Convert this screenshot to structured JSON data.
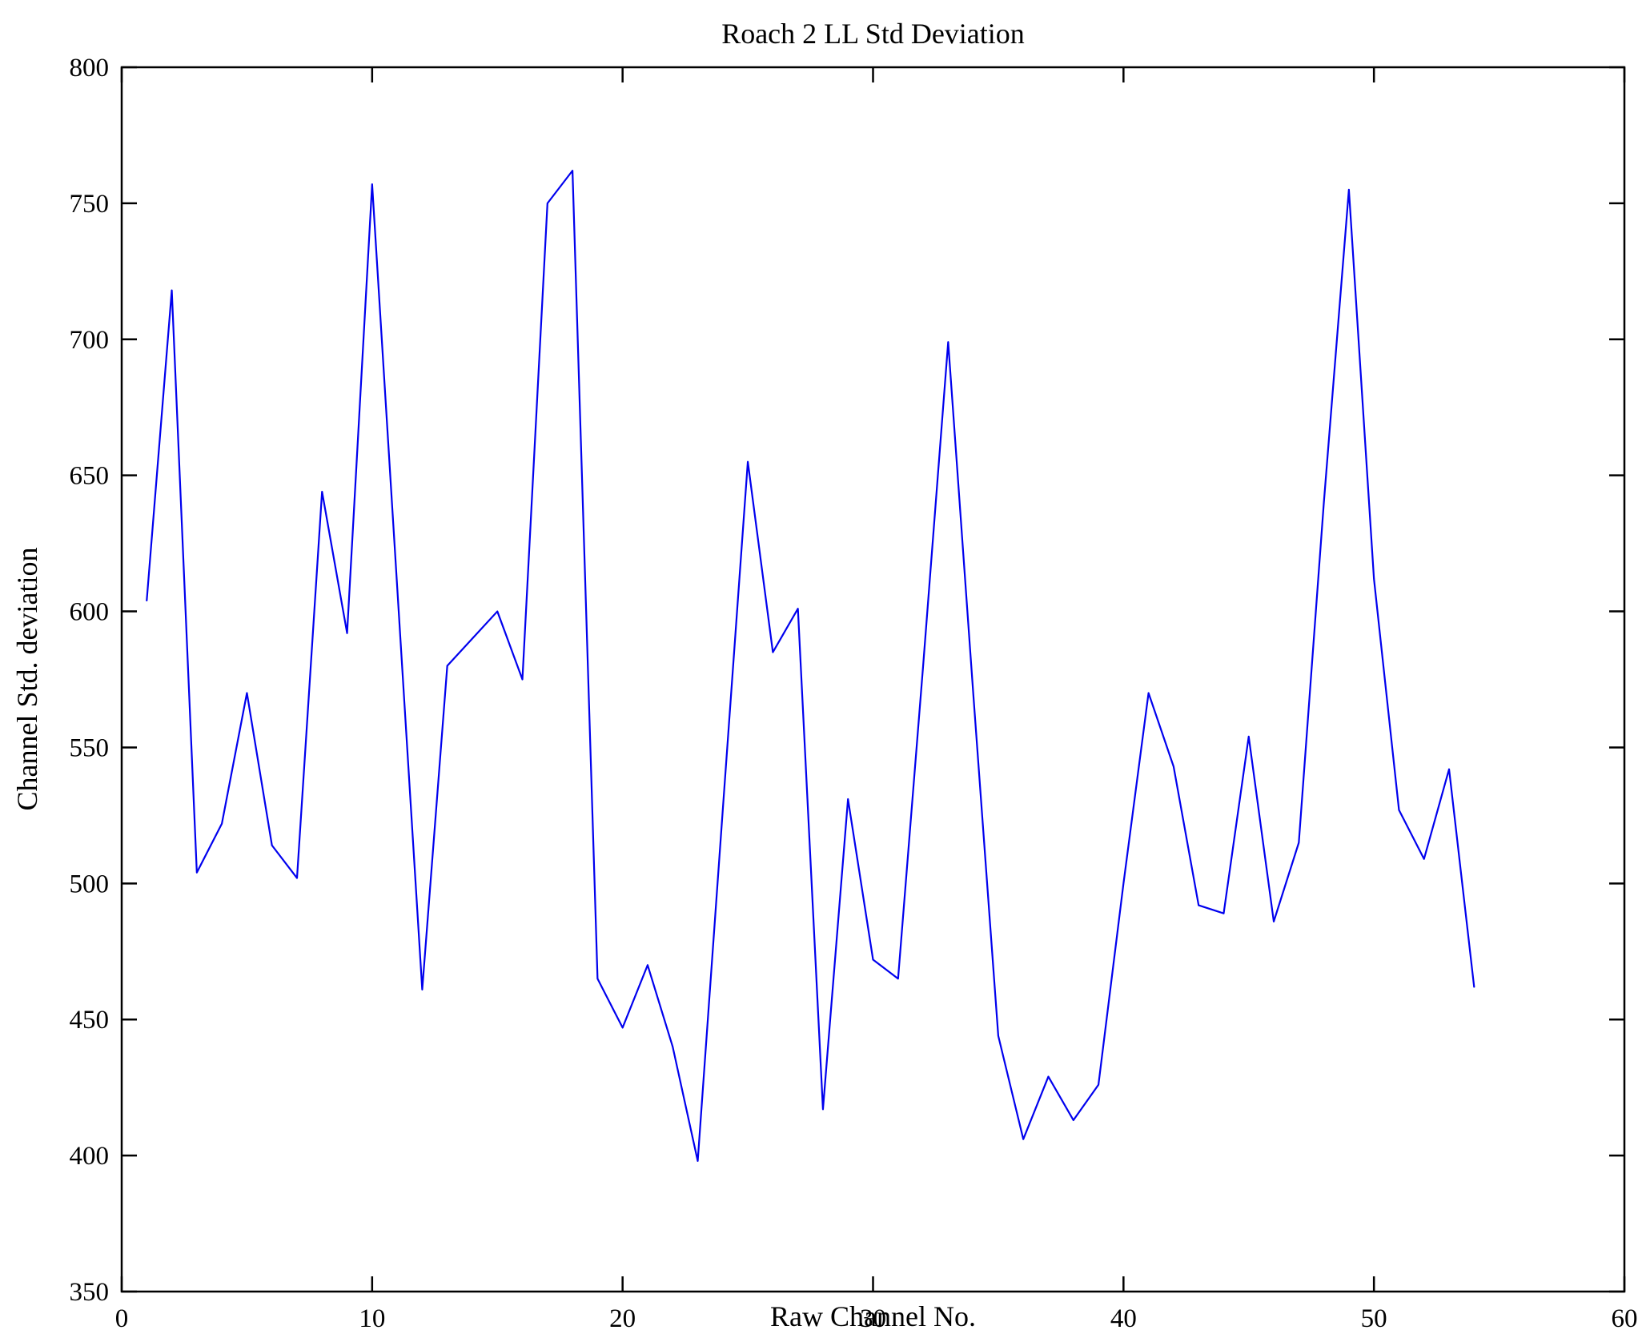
{
  "chart_data": {
    "type": "line",
    "title": "Roach 2 LL Std Deviation",
    "xlabel": "Raw Channel No.",
    "ylabel": "Channel Std. deviation",
    "xlim": [
      0,
      60
    ],
    "ylim": [
      350,
      800
    ],
    "xticks": [
      0,
      10,
      20,
      30,
      40,
      50,
      60
    ],
    "yticks": [
      350,
      400,
      450,
      500,
      550,
      600,
      650,
      700,
      750,
      800
    ],
    "grid": false,
    "legend": null,
    "line_color": "#0000ee",
    "axis_color": "#000000",
    "background_color": "#ffffff",
    "x": [
      1,
      2,
      3,
      4,
      5,
      6,
      7,
      8,
      9,
      10,
      11,
      12,
      13,
      14,
      15,
      16,
      17,
      18,
      19,
      20,
      21,
      22,
      23,
      24,
      25,
      26,
      27,
      28,
      29,
      30,
      31,
      32,
      33,
      34,
      35,
      36,
      37,
      38,
      39,
      40,
      41,
      42,
      43,
      44,
      45,
      46,
      47,
      48,
      49,
      50,
      51,
      52,
      53,
      54
    ],
    "y": [
      604,
      718,
      504,
      522,
      570,
      514,
      502,
      644,
      592,
      757,
      609,
      461,
      580,
      590,
      600,
      575,
      750,
      762,
      465,
      447,
      470,
      440,
      398,
      527,
      655,
      585,
      601,
      417,
      531,
      472,
      465,
      580,
      699,
      570,
      444,
      406,
      429,
      413,
      426,
      500,
      570,
      543,
      492,
      489,
      554,
      486,
      515,
      640,
      755,
      612,
      527,
      509,
      542,
      462
    ]
  }
}
